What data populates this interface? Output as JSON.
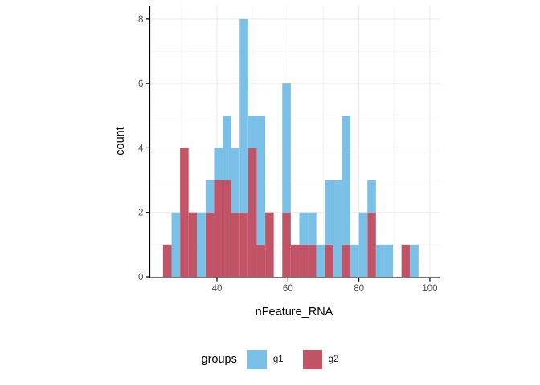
{
  "chart_data": {
    "type": "bar",
    "subtype": "stacked-histogram",
    "title": "",
    "xlabel": "nFeature_RNA",
    "ylabel": "count",
    "xlim": [
      21.2,
      102.5
    ],
    "ylim": [
      0,
      8.42
    ],
    "x_ticks": [
      40,
      60,
      80,
      100
    ],
    "x_minor": [
      30,
      50,
      70,
      90
    ],
    "y_ticks": [
      0,
      2,
      4,
      6,
      8
    ],
    "y_minor": [
      1,
      3,
      5,
      7
    ],
    "grid": "on",
    "bin_start": 24.8,
    "binwidth": 2.4,
    "bin_left_edges": [
      24.8,
      27.2,
      29.6,
      32.0,
      34.4,
      36.8,
      39.2,
      41.6,
      44.0,
      46.4,
      48.8,
      51.2,
      53.6,
      56.0,
      58.4,
      60.8,
      63.2,
      65.6,
      68.0,
      70.4,
      72.8,
      75.2,
      77.6,
      80.0,
      82.4,
      84.8,
      87.2,
      89.6,
      92.0,
      94.4
    ],
    "series": [
      {
        "name": "g2",
        "stack_order": "bottom",
        "color": "#C25468",
        "values": [
          1,
          0,
          4,
          2,
          0,
          2,
          3,
          3,
          2,
          2,
          4,
          1,
          2,
          0,
          2,
          1,
          1,
          1,
          0,
          1,
          0,
          1,
          0,
          0,
          2,
          0,
          0,
          0,
          1,
          0
        ]
      },
      {
        "name": "g1",
        "stack_order": "top",
        "color": "#7BC0E7",
        "values": [
          0,
          2,
          0,
          0,
          2,
          1,
          1,
          2,
          2,
          6,
          1,
          4,
          0,
          0,
          4,
          0,
          1,
          1,
          1,
          2,
          3,
          4,
          1,
          2,
          1,
          1,
          1,
          0,
          0,
          1
        ]
      }
    ],
    "totals": [
      1,
      2,
      4,
      2,
      2,
      3,
      4,
      5,
      4,
      8,
      5,
      5,
      2,
      0,
      6,
      1,
      2,
      2,
      1,
      3,
      3,
      5,
      1,
      2,
      3,
      1,
      1,
      0,
      1,
      1
    ],
    "legend": {
      "position": "bottom",
      "title": "groups",
      "items": [
        {
          "label": "g1",
          "color": "#7BC0E7"
        },
        {
          "label": "g2",
          "color": "#C25468"
        }
      ]
    },
    "colors": {
      "axis_line": "#000000",
      "tick_text": "#4d4d4d",
      "grid_major": "#e9e9e9",
      "grid_minor": "#f3f3f3",
      "background": "#ffffff"
    }
  }
}
